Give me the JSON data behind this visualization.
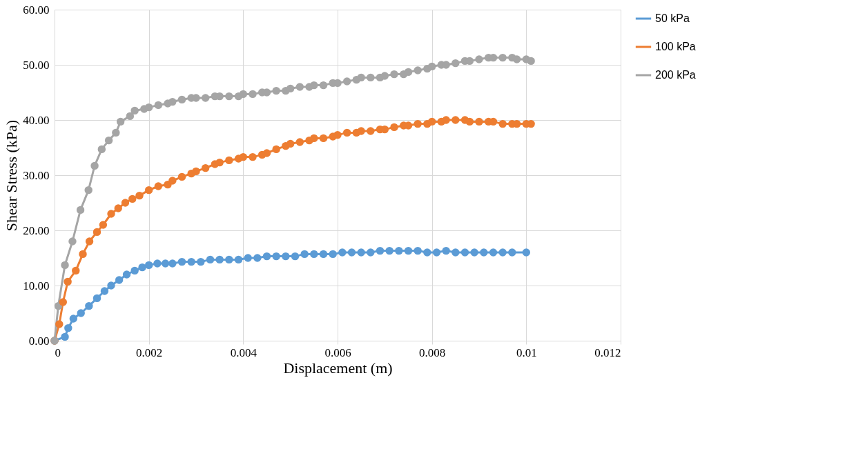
{
  "chart_data": {
    "type": "line",
    "xlabel": "Displacement (m)",
    "ylabel": "Shear Stress (kPa)",
    "xlim": [
      0,
      0.012
    ],
    "xticks": [
      0,
      0.002,
      0.004,
      0.006,
      0.008,
      0.01,
      0.012
    ],
    "ylim": [
      0,
      60
    ],
    "yticks": [
      {
        "value": 0,
        "label": "0.00"
      },
      {
        "value": 10,
        "label": "10.00"
      },
      {
        "value": 20,
        "label": "20.00"
      },
      {
        "value": 30,
        "label": "30.00"
      },
      {
        "value": 40,
        "label": "40.00"
      },
      {
        "value": 50,
        "label": "50.00"
      },
      {
        "value": 60,
        "label": "60.00"
      }
    ],
    "grid": true,
    "legend": "right",
    "marker": "circle",
    "line_style": "solid",
    "series": [
      {
        "name": "50 kPa",
        "color": "#5b9bd5",
        "x": [
          0,
          0.00022,
          0.00029,
          0.0004,
          0.00056,
          0.00073,
          0.0009,
          0.00106,
          0.0012,
          0.00137,
          0.00153,
          0.0017,
          0.00186,
          0.002,
          0.00218,
          0.00235,
          0.0025,
          0.0027,
          0.0029,
          0.0031,
          0.0033,
          0.0035,
          0.0037,
          0.0039,
          0.0041,
          0.0043,
          0.0045,
          0.0047,
          0.0049,
          0.0051,
          0.0053,
          0.0055,
          0.0057,
          0.0059,
          0.0061,
          0.0063,
          0.0065,
          0.0067,
          0.0069,
          0.0071,
          0.0073,
          0.0075,
          0.0077,
          0.0079,
          0.0081,
          0.0083,
          0.0085,
          0.0087,
          0.0089,
          0.0091,
          0.0093,
          0.0095,
          0.0097,
          0.01
        ],
        "values": [
          0,
          0.7,
          2.3,
          4.0,
          5.0,
          6.3,
          7.7,
          9.0,
          10.0,
          11.0,
          12.0,
          12.7,
          13.3,
          13.7,
          14.0,
          14.0,
          14.0,
          14.3,
          14.3,
          14.3,
          14.7,
          14.7,
          14.7,
          14.7,
          15.0,
          15.0,
          15.3,
          15.3,
          15.3,
          15.3,
          15.7,
          15.7,
          15.7,
          15.7,
          16.0,
          16.0,
          16.0,
          16.0,
          16.3,
          16.3,
          16.3,
          16.3,
          16.3,
          16.0,
          16.0,
          16.3,
          16.0,
          16.0,
          16.0,
          16.0,
          16.0,
          16.0,
          16.0,
          16.0
        ]
      },
      {
        "name": "100 kPa",
        "color": "#ed7d31",
        "x": [
          0,
          0.0001,
          0.00018,
          0.00028,
          0.00045,
          0.0006,
          0.00074,
          0.0009,
          0.00103,
          0.0012,
          0.00135,
          0.0015,
          0.00165,
          0.0018,
          0.002,
          0.0022,
          0.0024,
          0.0025,
          0.0027,
          0.0029,
          0.003,
          0.0032,
          0.0034,
          0.0035,
          0.0037,
          0.0039,
          0.004,
          0.0042,
          0.0044,
          0.0045,
          0.0047,
          0.0049,
          0.005,
          0.0052,
          0.0054,
          0.0055,
          0.0057,
          0.0059,
          0.006,
          0.0062,
          0.0064,
          0.0065,
          0.0067,
          0.0069,
          0.007,
          0.0072,
          0.0074,
          0.0075,
          0.0077,
          0.0079,
          0.008,
          0.0082,
          0.0083,
          0.0085,
          0.0087,
          0.0088,
          0.009,
          0.0092,
          0.0093,
          0.0095,
          0.0097,
          0.0098,
          0.01,
          0.0101
        ],
        "values": [
          0,
          3.0,
          7.0,
          10.7,
          12.7,
          15.7,
          18.0,
          19.7,
          21.0,
          23.0,
          24.0,
          25.0,
          25.7,
          26.3,
          27.3,
          28.0,
          28.3,
          29.0,
          29.7,
          30.3,
          30.7,
          31.3,
          32.0,
          32.3,
          32.7,
          33.0,
          33.3,
          33.3,
          33.7,
          34.0,
          34.7,
          35.3,
          35.7,
          36.0,
          36.3,
          36.7,
          36.7,
          37.0,
          37.3,
          37.7,
          37.7,
          38.0,
          38.0,
          38.3,
          38.3,
          38.7,
          39.0,
          39.0,
          39.3,
          39.3,
          39.7,
          39.7,
          40.0,
          40.0,
          40.0,
          39.7,
          39.7,
          39.7,
          39.7,
          39.3,
          39.3,
          39.3,
          39.3,
          39.3
        ]
      },
      {
        "name": "200 kPa",
        "color": "#a5a5a5",
        "x": [
          0,
          8e-05,
          0.00022,
          0.00038,
          0.00055,
          0.00072,
          0.00085,
          0.001,
          0.00115,
          0.0013,
          0.0014,
          0.0016,
          0.0017,
          0.0019,
          0.002,
          0.0022,
          0.0024,
          0.0025,
          0.0027,
          0.0029,
          0.003,
          0.0032,
          0.0034,
          0.0035,
          0.0037,
          0.0039,
          0.004,
          0.0042,
          0.0044,
          0.0045,
          0.0047,
          0.0049,
          0.005,
          0.0052,
          0.0054,
          0.0055,
          0.0057,
          0.0059,
          0.006,
          0.0062,
          0.0064,
          0.0065,
          0.0067,
          0.0069,
          0.007,
          0.0072,
          0.0074,
          0.0075,
          0.0077,
          0.0079,
          0.008,
          0.0082,
          0.0083,
          0.0085,
          0.0087,
          0.0088,
          0.009,
          0.0092,
          0.0093,
          0.0095,
          0.0097,
          0.0098,
          0.01,
          0.0101
        ],
        "values": [
          0,
          6.3,
          13.7,
          18.0,
          23.7,
          27.3,
          31.7,
          34.7,
          36.3,
          37.7,
          39.7,
          40.7,
          41.7,
          42.0,
          42.3,
          42.7,
          43.0,
          43.3,
          43.7,
          44.0,
          44.0,
          44.0,
          44.3,
          44.3,
          44.3,
          44.3,
          44.7,
          44.7,
          45.0,
          45.0,
          45.3,
          45.3,
          45.7,
          46.0,
          46.0,
          46.3,
          46.3,
          46.7,
          46.7,
          47.0,
          47.3,
          47.7,
          47.7,
          47.7,
          48.0,
          48.3,
          48.3,
          48.7,
          49.0,
          49.3,
          49.7,
          50.0,
          50.0,
          50.3,
          50.7,
          50.7,
          51.0,
          51.3,
          51.3,
          51.3,
          51.3,
          51.0,
          51.0,
          50.7
        ]
      }
    ]
  }
}
